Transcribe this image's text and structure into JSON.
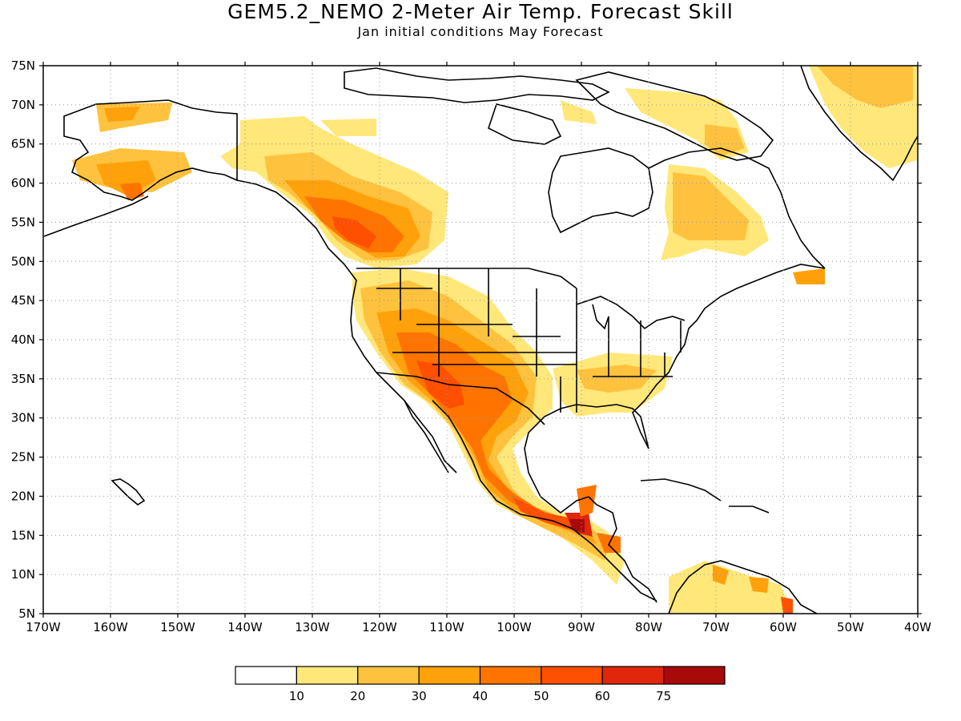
{
  "title": "GEM5.2_NEMO 2-Meter Air Temp. Forecast Skill",
  "subtitle": "Jan initial conditions  May Forecast",
  "lat_labels": [
    "75N",
    "70N",
    "65N",
    "60N",
    "55N",
    "50N",
    "45N",
    "40N",
    "35N",
    "30N",
    "25N",
    "20N",
    "15N",
    "10N",
    "5N"
  ],
  "lon_labels": [
    "170W",
    "160W",
    "150W",
    "140W",
    "130W",
    "120W",
    "110W",
    "100W",
    "90W",
    "80W",
    "70W",
    "60W",
    "50W",
    "40W"
  ],
  "colorbar": {
    "colors": [
      "#ffffff",
      "#ffe77a",
      "#ffc23e",
      "#ffa10a",
      "#ff7400",
      "#ff4f00",
      "#e0260c",
      "#a80a0a"
    ],
    "labels": [
      "10",
      "20",
      "30",
      "40",
      "50",
      "60",
      "75"
    ]
  },
  "colors": {
    "land_outline": "#000000",
    "grid": "#999999"
  }
}
